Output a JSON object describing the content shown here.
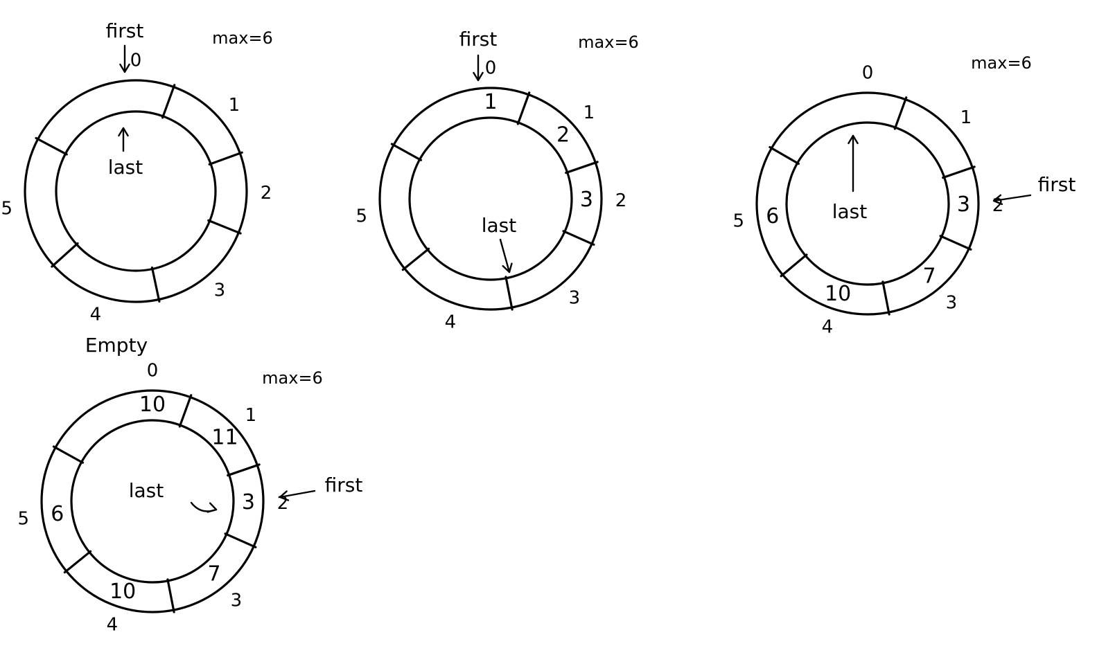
{
  "colors": {
    "ink": "#000000",
    "paper": "#ffffff"
  },
  "labels": {
    "first": "first",
    "last": "last",
    "max": "max=6",
    "empty": "Empty"
  },
  "slot_numbers": [
    "0",
    "1",
    "2",
    "3",
    "4",
    "5"
  ],
  "buffers": [
    {
      "state": "",
      "max_label": "max=6",
      "slot_values": [
        "",
        "",
        "",
        "",
        "",
        ""
      ],
      "first_index": 0,
      "last_index": 0
    },
    {
      "state": "",
      "max_label": "max=6",
      "slot_values": [
        "1",
        "2",
        "3",
        "",
        "",
        ""
      ],
      "first_index": 0,
      "last_index": 3
    },
    {
      "state": "",
      "max_label": "max=6",
      "slot_values": [
        "",
        "",
        "3",
        "7",
        "10",
        "6"
      ],
      "first_index": 2,
      "last_index": 0
    },
    {
      "state": "Empty",
      "max_label": "max=6",
      "slot_values": [
        "10",
        "11",
        "3",
        "7",
        "10",
        "6"
      ],
      "first_index": 2,
      "last_index": 2
    }
  ]
}
